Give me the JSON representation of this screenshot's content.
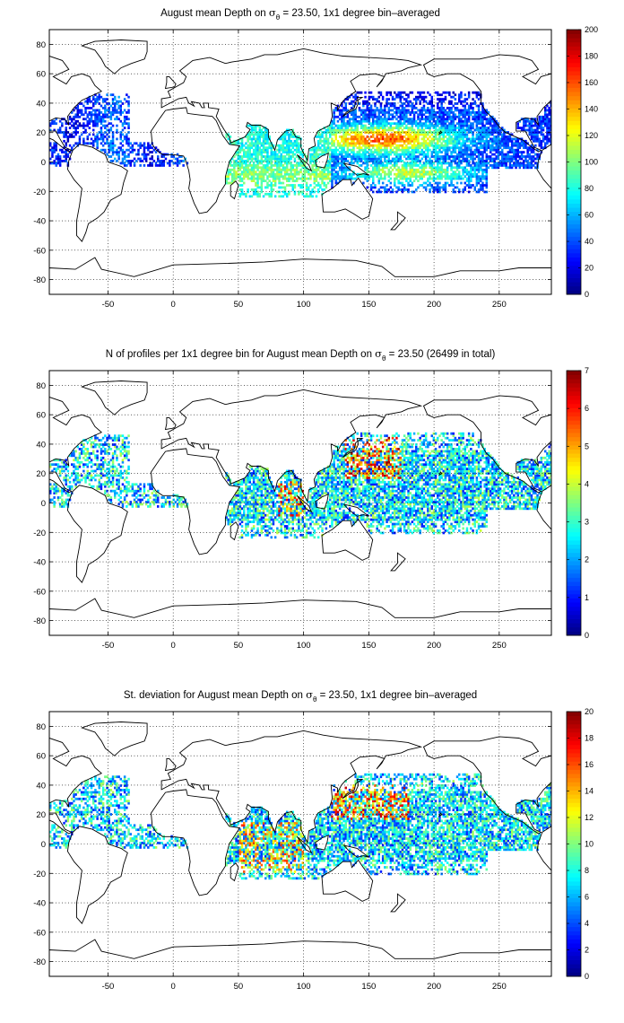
{
  "chart_data": [
    {
      "type": "heatmap",
      "title_prefix": "August mean Depth on ",
      "title_symbol": "σ",
      "title_subscript": "θ",
      "title_suffix": " = 23.50, 1x1 degree bin–averaged",
      "xlim": [
        -95,
        290
      ],
      "ylim": [
        -90,
        90
      ],
      "x_ticks": [
        -50,
        0,
        50,
        100,
        150,
        200,
        250
      ],
      "y_ticks": [
        80,
        60,
        40,
        20,
        0,
        -20,
        -40,
        -60,
        -80
      ],
      "grid": true,
      "colorbar": {
        "min": 0,
        "max": 200,
        "ticks": [
          0,
          20,
          40,
          60,
          80,
          100,
          120,
          140,
          160,
          180,
          200
        ]
      },
      "field": "depth"
    },
    {
      "type": "heatmap",
      "title_prefix": "N of profiles per 1x1 degree bin for August mean Depth on ",
      "title_symbol": "σ",
      "title_subscript": "θ",
      "title_suffix": " = 23.50 (26499 in total)",
      "xlim": [
        -95,
        290
      ],
      "ylim": [
        -90,
        90
      ],
      "x_ticks": [
        -50,
        0,
        50,
        100,
        150,
        200,
        250
      ],
      "y_ticks": [
        80,
        60,
        40,
        20,
        0,
        -20,
        -40,
        -60,
        -80
      ],
      "grid": true,
      "colorbar": {
        "min": 0,
        "max": 7,
        "ticks": [
          0,
          1,
          2,
          3,
          4,
          5,
          6,
          7
        ]
      },
      "field": "count"
    },
    {
      "type": "heatmap",
      "title_prefix": "St. deviation for August mean Depth on ",
      "title_symbol": "σ",
      "title_subscript": "θ",
      "title_suffix": " = 23.50, 1x1 degree bin–averaged",
      "xlim": [
        -95,
        290
      ],
      "ylim": [
        -90,
        90
      ],
      "x_ticks": [
        -50,
        0,
        50,
        100,
        150,
        200,
        250
      ],
      "y_ticks": [
        80,
        60,
        40,
        20,
        0,
        -20,
        -40,
        -60,
        -80
      ],
      "grid": true,
      "colorbar": {
        "min": 0,
        "max": 20,
        "ticks": [
          0,
          2,
          4,
          6,
          8,
          10,
          12,
          14,
          16,
          18,
          20
        ]
      },
      "field": "std"
    }
  ],
  "colormap": "jet",
  "colors": {
    "coastline": "#000000",
    "grid": "#000000",
    "background": "#ffffff"
  }
}
